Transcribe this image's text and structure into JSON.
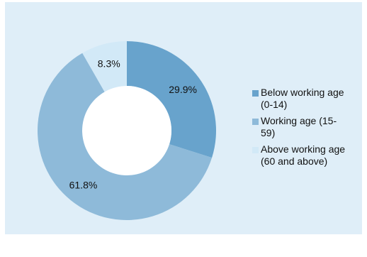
{
  "chart_data": {
    "type": "pie",
    "variant": "donut",
    "title": "",
    "categories": [
      "Below working age (0-14)",
      "Working age (15-59)",
      "Above working age (60 and above)"
    ],
    "values": [
      29.9,
      61.8,
      8.3
    ],
    "value_labels": [
      "29.9%",
      "61.8%",
      "8.3%"
    ],
    "colors": [
      "#68a3cc",
      "#8ebad9",
      "#d2e9f7"
    ],
    "legend_position": "right",
    "legend": [
      {
        "line1": "Below working age",
        "line2": "(0-14)"
      },
      {
        "line1": "Working age (15-",
        "line2": "59)"
      },
      {
        "line1": "Above working age",
        "line2": "(60 and above)"
      }
    ]
  },
  "colors": {
    "background": "#dfeef8",
    "hole": "#ffffff"
  }
}
